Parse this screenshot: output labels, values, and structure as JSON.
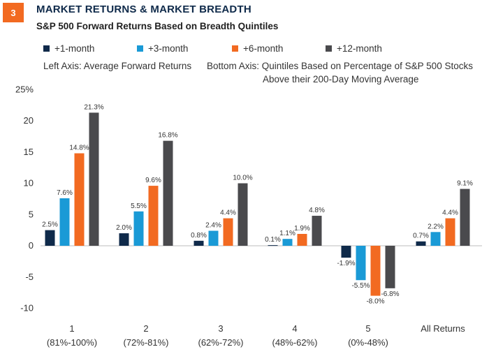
{
  "header": {
    "badge": "3",
    "title": "MARKET RETURNS & MARKET BREADTH",
    "subtitle": "S&P 500 Forward Returns Based on Breadth Quintiles"
  },
  "notes": {
    "left_axis": "Left Axis: Average Forward Returns",
    "bottom_axis_line1": "Bottom Axis: Quintiles Based on Percentage of S&P 500 Stocks",
    "bottom_axis_line2": "Above their 200-Day Moving Average"
  },
  "chart_data": {
    "type": "bar",
    "title": "MARKET RETURNS & MARKET BREADTH",
    "subtitle": "S&P 500 Forward Returns Based on Breadth Quintiles",
    "ylim": [
      -10,
      25
    ],
    "yticks": [
      {
        "value": 25,
        "label": "25%"
      },
      {
        "value": 20,
        "label": "20"
      },
      {
        "value": 15,
        "label": "15"
      },
      {
        "value": 10,
        "label": "10"
      },
      {
        "value": 5,
        "label": "5"
      },
      {
        "value": 0,
        "label": "0"
      },
      {
        "value": -5,
        "label": "-5"
      },
      {
        "value": -10,
        "label": "-10"
      }
    ],
    "grid": false,
    "legend_position": "top",
    "categories": [
      {
        "line1": "1",
        "line2": "(81%-100%)"
      },
      {
        "line1": "2",
        "line2": "(72%-81%)"
      },
      {
        "line1": "3",
        "line2": "(62%-72%)"
      },
      {
        "line1": "4",
        "line2": "(48%-62%)"
      },
      {
        "line1": "5",
        "line2": "(0%-48%)"
      },
      {
        "line1": "All Returns",
        "line2": ""
      }
    ],
    "series": [
      {
        "name": "+1-month",
        "color": "#0f2a4a",
        "values": [
          2.5,
          2.0,
          0.8,
          0.1,
          -1.9,
          0.7
        ],
        "labels": [
          "2.5%",
          "2.0%",
          "0.8%",
          "0.1%",
          "-1.9%",
          "0.7%"
        ]
      },
      {
        "name": "+3-month",
        "color": "#1a9ad6",
        "values": [
          7.6,
          5.5,
          2.4,
          1.1,
          -5.5,
          2.2
        ],
        "labels": [
          "7.6%",
          "5.5%",
          "2.4%",
          "1.1%",
          "-5.5%",
          "2.2%"
        ]
      },
      {
        "name": "+6-month",
        "color": "#f26a21",
        "values": [
          14.8,
          9.6,
          4.4,
          1.9,
          -8.0,
          4.4
        ],
        "labels": [
          "14.8%",
          "9.6%",
          "4.4%",
          "1.9%",
          "-8.0%",
          "4.4%"
        ]
      },
      {
        "name": "+12-month",
        "color": "#4a4a4d",
        "values": [
          21.3,
          16.8,
          10.0,
          4.8,
          -6.8,
          9.1
        ],
        "labels": [
          "21.3%",
          "16.8%",
          "10.0%",
          "4.8%",
          "-6.8%",
          "9.1%"
        ]
      }
    ]
  }
}
